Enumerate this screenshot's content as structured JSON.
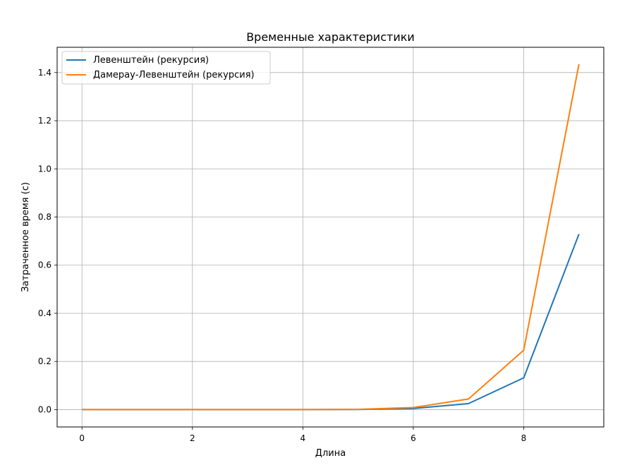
{
  "chart_data": {
    "type": "line",
    "title": "Временные характеристики",
    "xlabel": "Длина",
    "ylabel": "Затраченное время (с)",
    "xlim": [
      -0.45,
      9.45
    ],
    "ylim": [
      -0.072,
      1.505
    ],
    "xticks": [
      0,
      2,
      4,
      6,
      8
    ],
    "xtick_labels": [
      "0",
      "2",
      "4",
      "6",
      "8"
    ],
    "yticks": [
      0.0,
      0.2,
      0.4,
      0.6,
      0.8,
      1.0,
      1.2,
      1.4
    ],
    "ytick_labels": [
      "0.0",
      "0.2",
      "0.4",
      "0.6",
      "0.8",
      "1.0",
      "1.2",
      "1.4"
    ],
    "grid": true,
    "legend_position": "top-left",
    "x": [
      0,
      1,
      2,
      3,
      4,
      5,
      6,
      7,
      8,
      9
    ],
    "series": [
      {
        "name": "Левенштейн (рекурсия)",
        "color": "#1f77b4",
        "values": [
          0.0,
          0.0,
          0.0,
          0.0,
          0.0001,
          0.0008,
          0.0045,
          0.025,
          0.132,
          0.729
        ]
      },
      {
        "name": "Дамерау-Левенштейн (рекурсия)",
        "color": "#ff7f0e",
        "values": [
          0.0,
          0.0,
          0.0,
          0.0,
          0.0002,
          0.0014,
          0.0085,
          0.044,
          0.247,
          1.435
        ]
      }
    ]
  }
}
